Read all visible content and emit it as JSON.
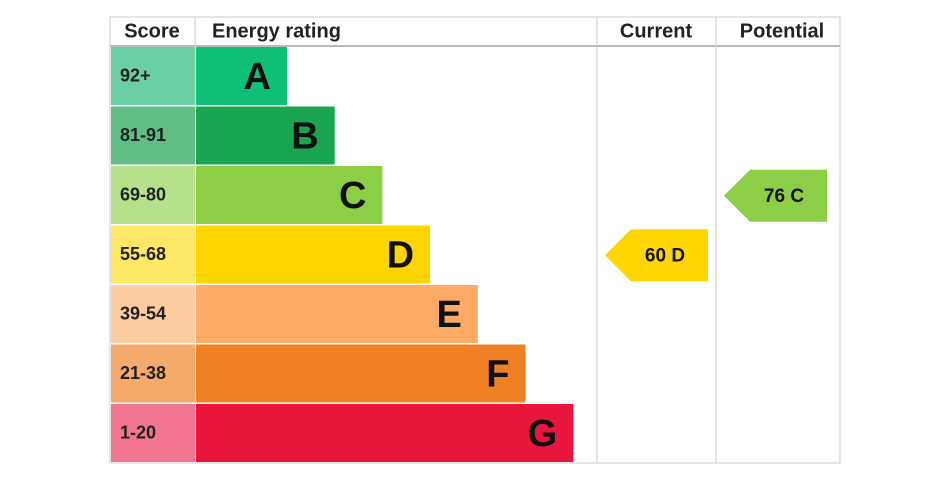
{
  "headers": {
    "score": "Score",
    "rating": "Energy rating",
    "current": "Current",
    "potential": "Potential"
  },
  "bands": [
    {
      "score": "92+",
      "letter": "A",
      "color": "#0fbf77",
      "score_color": "#6ccfa4"
    },
    {
      "score": "81-91",
      "letter": "B",
      "color": "#1aa650",
      "score_color": "#5fbd85"
    },
    {
      "score": "69-80",
      "letter": "C",
      "color": "#8cce46",
      "score_color": "#b6e08a"
    },
    {
      "score": "55-68",
      "letter": "D",
      "color": "#ffd500",
      "score_color": "#ffe766"
    },
    {
      "score": "39-54",
      "letter": "E",
      "color": "#fcaa65",
      "score_color": "#fdcba0"
    },
    {
      "score": "21-38",
      "letter": "F",
      "color": "#ef8023",
      "score_color": "#f4aa6b"
    },
    {
      "score": "1-20",
      "letter": "G",
      "color": "#e9153b",
      "score_color": "#f27490"
    }
  ],
  "current": {
    "label": "60 D"
  },
  "potential": {
    "label": "76 C"
  }
}
